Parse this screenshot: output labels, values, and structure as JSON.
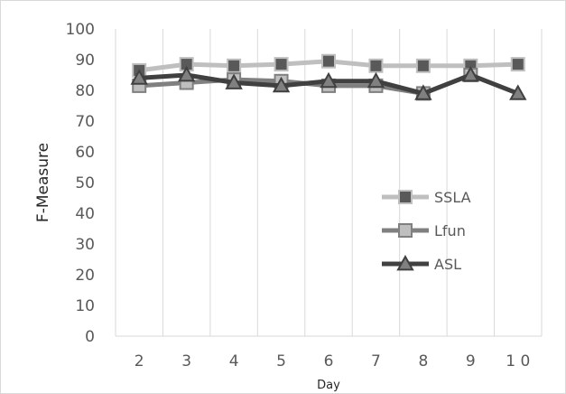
{
  "chart_data": {
    "type": "line",
    "title": "",
    "xlabel": "Day",
    "ylabel": "F-Measure",
    "x": [
      "2",
      "3",
      "4",
      "5",
      "6",
      "7",
      "8",
      "9",
      "1 0"
    ],
    "ylim": [
      0,
      100
    ],
    "yticks": [
      0,
      10,
      20,
      30,
      40,
      50,
      60,
      70,
      80,
      90,
      100
    ],
    "grid": "vertical",
    "legend_position": "right",
    "series": [
      {
        "name": "SSLA",
        "marker": "square",
        "line_color": "#bfbfbf",
        "marker_color": "#595959",
        "values": [
          86.5,
          88.5,
          88,
          88.5,
          89.5,
          88,
          88,
          88,
          88.5
        ]
      },
      {
        "name": "Lfun",
        "marker": "square",
        "line_color": "#808080",
        "marker_color": "#bfbfbf",
        "values": [
          81.5,
          82.5,
          83.5,
          83,
          81.5,
          81.5,
          79,
          85,
          null
        ]
      },
      {
        "name": "ASL",
        "marker": "triangle",
        "line_color": "#404040",
        "marker_color": "#808080",
        "values": [
          84,
          85,
          82.5,
          81.5,
          83,
          83,
          79,
          85,
          79
        ]
      }
    ]
  }
}
